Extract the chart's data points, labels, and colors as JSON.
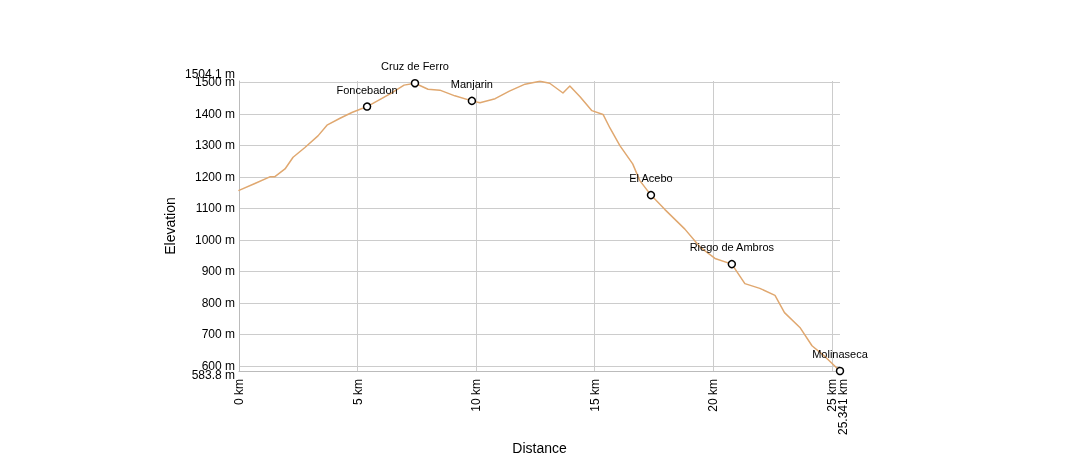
{
  "chart_data": {
    "type": "line",
    "xlabel": "Distance",
    "ylabel": "Elevation",
    "xlim": [
      0,
      25.341
    ],
    "ylim": [
      583.8,
      1504.1
    ],
    "xticks": [
      {
        "value": 0,
        "label": "0 km"
      },
      {
        "value": 5,
        "label": "5 km"
      },
      {
        "value": 10,
        "label": "10 km"
      },
      {
        "value": 15,
        "label": "15 km"
      },
      {
        "value": 20,
        "label": "20 km"
      },
      {
        "value": 25,
        "label": "25 km"
      },
      {
        "value": 25.341,
        "label": "25.341 km"
      }
    ],
    "yticks": [
      {
        "value": 583.8,
        "label": "583.8 m"
      },
      {
        "value": 600,
        "label": "600 m"
      },
      {
        "value": 700,
        "label": "700 m"
      },
      {
        "value": 800,
        "label": "800 m"
      },
      {
        "value": 900,
        "label": "900 m"
      },
      {
        "value": 1000,
        "label": "1000 m"
      },
      {
        "value": 1100,
        "label": "1100 m"
      },
      {
        "value": 1200,
        "label": "1200 m"
      },
      {
        "value": 1300,
        "label": "1300 m"
      },
      {
        "value": 1400,
        "label": "1400 m"
      },
      {
        "value": 1500,
        "label": "1500 m"
      },
      {
        "value": 1504.1,
        "label": "1504.1 m"
      }
    ],
    "grid": true,
    "marker": "none",
    "line_style": "solid",
    "series": [
      {
        "color": "#e0a870",
        "x": [
          0,
          0.67,
          1.3,
          1.5,
          1.94,
          2.28,
          2.78,
          3.33,
          3.71,
          4.26,
          4.76,
          5.4,
          6.37,
          6.96,
          7.42,
          7.97,
          8.47,
          9.1,
          9.82,
          10.16,
          10.8,
          11.4,
          12.06,
          12.69,
          13.1,
          13.66,
          13.95,
          14.38,
          14.88,
          15.35,
          15.64,
          16.06,
          16.6,
          16.9,
          17.37,
          17.96,
          18.8,
          19.43,
          20.07,
          20.78,
          21.33,
          21.96,
          22.6,
          23.0,
          23.65,
          24.16,
          24.7,
          25.341
        ],
        "values": [
          1157,
          1179,
          1200,
          1200,
          1225,
          1262,
          1293,
          1330,
          1364,
          1386,
          1404,
          1423,
          1463,
          1491,
          1497,
          1478,
          1475,
          1457,
          1441,
          1435,
          1448,
          1472,
          1494,
          1503,
          1497,
          1466,
          1488,
          1454,
          1410,
          1398,
          1355,
          1299,
          1241,
          1188,
          1142,
          1096,
          1034,
          978,
          941,
          923,
          861,
          846,
          824,
          769,
          722,
          664,
          630,
          583.8
        ]
      }
    ],
    "annotations": [
      {
        "text": "Foncebadon",
        "x": 5.4,
        "y": 1423
      },
      {
        "text": "Cruz de Ferro",
        "x": 7.42,
        "y": 1497
      },
      {
        "text": "Manjarin",
        "x": 9.82,
        "y": 1441
      },
      {
        "text": "El Acebo",
        "x": 17.37,
        "y": 1142
      },
      {
        "text": "Riego de Ambros",
        "x": 20.78,
        "y": 923
      },
      {
        "text": "Molinaseca",
        "x": 25.341,
        "y": 583.8
      }
    ]
  }
}
